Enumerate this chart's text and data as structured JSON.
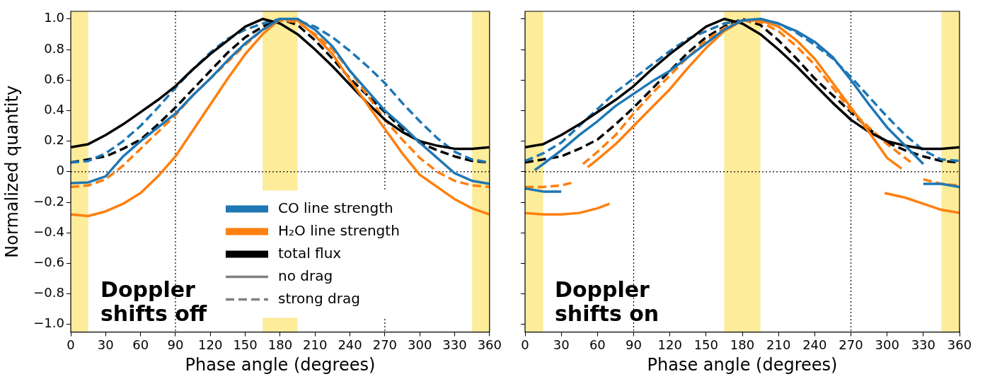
{
  "chart_data": [
    {
      "type": "line",
      "xlabel": "Phase angle (degrees)",
      "ylabel": "Normalized quantity",
      "x": [
        0,
        15,
        30,
        45,
        60,
        75,
        90,
        105,
        120,
        135,
        150,
        165,
        180,
        195,
        210,
        225,
        240,
        255,
        270,
        285,
        300,
        315,
        330,
        345,
        360
      ],
      "xlim": [
        0,
        360
      ],
      "xticks": [
        0,
        30,
        60,
        90,
        120,
        150,
        180,
        210,
        240,
        270,
        300,
        330,
        360
      ],
      "ylim": [
        -1.05,
        1.05
      ],
      "yticks": [
        {
          "value": -1,
          "label": "−1.0"
        },
        {
          "value": -0.8,
          "label": "−0.8"
        },
        {
          "value": -0.6,
          "label": "−0.6"
        },
        {
          "value": -0.4,
          "label": "−0.4"
        },
        {
          "value": -0.2,
          "label": "−0.2"
        },
        0,
        {
          "value": 0.2,
          "label": "0.2"
        },
        {
          "value": 0.4,
          "label": "0.4"
        },
        {
          "value": 0.6,
          "label": "0.6"
        },
        {
          "value": 0.8,
          "label": "0.8"
        },
        {
          "value": 1,
          "label": "1.0"
        }
      ],
      "grid": false,
      "legend": "bottom",
      "marker": "none",
      "ref_lines": [
        {
          "axis": "x",
          "value": 90,
          "color": "#000000",
          "line_style": "dotted"
        },
        {
          "axis": "x",
          "value": 270,
          "color": "#000000",
          "line_style": "dotted"
        },
        {
          "axis": "y",
          "value": 0,
          "color": "#000000",
          "line_style": "dotted"
        }
      ],
      "bands": [
        {
          "axis": "x",
          "from": 0,
          "to": 15,
          "color": "#fdec9a"
        },
        {
          "axis": "x",
          "from": 165,
          "to": 195,
          "color": "#fdec9a"
        },
        {
          "axis": "x",
          "from": 345,
          "to": 360,
          "color": "#fdec9a"
        }
      ],
      "annotations": [
        "Doppler shifts off",
        "no drag",
        "strong drag"
      ],
      "series": [
        {
          "name": "CO line strength",
          "color": "#1f77b4",
          "line_style": "solid",
          "values": [
            -0.075,
            -0.07,
            -0.03,
            0.1,
            0.2,
            0.29,
            0.38,
            0.5,
            0.61,
            0.73,
            0.84,
            0.93,
            1.0,
            1.0,
            0.93,
            0.82,
            0.66,
            0.53,
            0.4,
            0.3,
            0.19,
            0.09,
            -0.01,
            -0.06,
            -0.08
          ]
        },
        {
          "name": "H₂O line strength",
          "color": "#ff7f0e",
          "line_style": "solid",
          "values": [
            -0.28,
            -0.29,
            -0.26,
            -0.21,
            -0.14,
            -0.03,
            0.1,
            0.27,
            0.44,
            0.61,
            0.77,
            0.9,
            1.0,
            0.99,
            0.89,
            0.77,
            0.6,
            0.44,
            0.28,
            0.12,
            -0.02,
            -0.1,
            -0.18,
            -0.24,
            -0.28
          ]
        },
        {
          "name": "total flux",
          "color": "#000000",
          "line_style": "solid",
          "values": [
            0.16,
            0.18,
            0.24,
            0.31,
            0.39,
            0.47,
            0.56,
            0.67,
            0.77,
            0.86,
            0.95,
            1.0,
            0.97,
            0.9,
            0.8,
            0.69,
            0.57,
            0.45,
            0.34,
            0.26,
            0.2,
            0.17,
            0.15,
            0.15,
            0.16
          ]
        },
        {
          "color": "#1f77b4",
          "line_style": "dashed",
          "values": [
            0.06,
            0.07,
            0.12,
            0.2,
            0.3,
            0.42,
            0.55,
            0.67,
            0.78,
            0.87,
            0.93,
            0.97,
            1.0,
            0.99,
            0.95,
            0.88,
            0.79,
            0.69,
            0.58,
            0.45,
            0.33,
            0.22,
            0.13,
            0.08,
            0.06
          ]
        },
        {
          "color": "#ff7f0e",
          "line_style": "dashed",
          "values": [
            -0.1,
            -0.09,
            -0.05,
            0.04,
            0.15,
            0.26,
            0.37,
            0.5,
            0.61,
            0.72,
            0.83,
            0.93,
            0.99,
            0.98,
            0.9,
            0.8,
            0.66,
            0.5,
            0.34,
            0.21,
            0.09,
            0.0,
            -0.06,
            -0.09,
            -0.1
          ]
        },
        {
          "color": "#000000",
          "line_style": "dashed",
          "values": [
            0.06,
            0.08,
            0.1,
            0.15,
            0.21,
            0.31,
            0.42,
            0.54,
            0.66,
            0.78,
            0.88,
            0.95,
            1.0,
            0.96,
            0.86,
            0.74,
            0.61,
            0.5,
            0.39,
            0.28,
            0.19,
            0.14,
            0.1,
            0.07,
            0.06
          ]
        }
      ]
    },
    {
      "type": "line",
      "xlabel": "Phase angle (degrees)",
      "x": [
        0,
        15,
        30,
        45,
        60,
        75,
        90,
        105,
        120,
        135,
        150,
        165,
        180,
        195,
        210,
        225,
        240,
        255,
        270,
        285,
        300,
        315,
        330,
        345,
        360
      ],
      "xlim": [
        0,
        360
      ],
      "xticks": [
        0,
        30,
        60,
        90,
        120,
        150,
        180,
        210,
        240,
        270,
        300,
        330,
        360
      ],
      "ylim": [
        -1.05,
        1.05
      ],
      "yticks": [
        {
          "value": -1,
          "label": null
        },
        {
          "value": -0.8,
          "label": null
        },
        {
          "value": -0.6,
          "label": null
        },
        {
          "value": -0.4,
          "label": null
        },
        {
          "value": -0.2,
          "label": null
        },
        {
          "value": 0,
          "label": null
        },
        {
          "value": 0.2,
          "label": null
        },
        {
          "value": 0.4,
          "label": null
        },
        {
          "value": 0.6,
          "label": null
        },
        {
          "value": 0.8,
          "label": null
        },
        {
          "value": 1,
          "label": null
        }
      ],
      "tick_labels": "x",
      "grid": false,
      "marker": "none",
      "ref_lines": [
        {
          "axis": "x",
          "value": 90,
          "color": "#000000",
          "line_style": "dotted"
        },
        {
          "axis": "x",
          "value": 270,
          "color": "#000000",
          "line_style": "dotted"
        },
        {
          "axis": "y",
          "value": 0,
          "color": "#000000",
          "line_style": "dotted"
        }
      ],
      "bands": [
        {
          "axis": "x",
          "from": 0,
          "to": 15,
          "color": "#fdec9a"
        },
        {
          "axis": "x",
          "from": 165,
          "to": 195,
          "color": "#fdec9a"
        },
        {
          "axis": "x",
          "from": 345,
          "to": 360,
          "color": "#fdec9a"
        }
      ],
      "annotations": [
        "Doppler shifts on"
      ],
      "series": [
        {
          "color": "#1f77b4",
          "line_style": "solid",
          "x": [
            0,
            15,
            30
          ],
          "values": [
            -0.11,
            -0.13,
            -0.13
          ]
        },
        {
          "color": "#1f77b4",
          "line_style": "solid",
          "x": [
            8,
            15,
            30,
            45,
            60,
            75,
            90,
            105,
            120,
            135,
            150,
            165,
            180,
            195,
            210,
            225,
            240,
            255,
            270,
            285,
            300,
            315,
            330
          ],
          "values": [
            0.01,
            0.05,
            0.14,
            0.24,
            0.33,
            0.43,
            0.51,
            0.59,
            0.66,
            0.75,
            0.84,
            0.93,
            0.99,
            1.0,
            0.97,
            0.92,
            0.85,
            0.75,
            0.6,
            0.44,
            0.29,
            0.17,
            0.05
          ]
        },
        {
          "color": "#1f77b4",
          "line_style": "solid",
          "x": [
            330,
            345,
            360
          ],
          "values": [
            -0.08,
            -0.08,
            -0.1
          ]
        },
        {
          "color": "#ff7f0e",
          "line_style": "solid",
          "x": [
            0,
            15,
            30,
            45,
            60,
            70
          ],
          "values": [
            -0.27,
            -0.28,
            -0.28,
            -0.27,
            -0.24,
            -0.21
          ]
        },
        {
          "color": "#ff7f0e",
          "line_style": "solid",
          "x": [
            52,
            60,
            75,
            90,
            105,
            120,
            135,
            150,
            165,
            180,
            195,
            210,
            225,
            240,
            255,
            270,
            285,
            300,
            312
          ],
          "values": [
            0.03,
            0.08,
            0.18,
            0.3,
            0.42,
            0.54,
            0.68,
            0.81,
            0.92,
            0.99,
            0.99,
            0.95,
            0.86,
            0.74,
            0.58,
            0.42,
            0.26,
            0.09,
            0.02
          ]
        },
        {
          "color": "#ff7f0e",
          "line_style": "solid",
          "x": [
            298,
            315,
            330,
            345,
            360
          ],
          "values": [
            -0.14,
            -0.17,
            -0.21,
            -0.25,
            -0.27
          ]
        },
        {
          "color": "#000000",
          "line_style": "solid",
          "values": [
            0.16,
            0.18,
            0.24,
            0.31,
            0.39,
            0.47,
            0.56,
            0.67,
            0.77,
            0.86,
            0.95,
            1.0,
            0.97,
            0.9,
            0.8,
            0.69,
            0.57,
            0.45,
            0.34,
            0.26,
            0.2,
            0.17,
            0.15,
            0.15,
            0.16
          ]
        },
        {
          "color": "#1f77b4",
          "line_style": "dashed",
          "values": [
            0.07,
            0.12,
            0.19,
            0.3,
            0.41,
            0.52,
            0.61,
            0.7,
            0.79,
            0.87,
            0.92,
            0.97,
            0.99,
            1.0,
            0.97,
            0.91,
            0.83,
            0.74,
            0.62,
            0.49,
            0.36,
            0.24,
            0.14,
            0.08,
            0.07
          ]
        },
        {
          "color": "#ff7f0e",
          "line_style": "dashed",
          "x": [
            0,
            15,
            30,
            40
          ],
          "values": [
            -0.1,
            -0.1,
            -0.09,
            -0.07
          ]
        },
        {
          "color": "#ff7f0e",
          "line_style": "dashed",
          "x": [
            48,
            60,
            75,
            90,
            105,
            120,
            135,
            150,
            165,
            180,
            195,
            210,
            225,
            240,
            255,
            270,
            285,
            300,
            315,
            320
          ],
          "values": [
            0.05,
            0.13,
            0.24,
            0.38,
            0.51,
            0.63,
            0.75,
            0.86,
            0.94,
            0.99,
            0.98,
            0.92,
            0.82,
            0.7,
            0.55,
            0.4,
            0.29,
            0.18,
            0.09,
            0.06
          ]
        },
        {
          "color": "#ff7f0e",
          "line_style": "dashed",
          "x": [
            330,
            345,
            360
          ],
          "values": [
            -0.05,
            -0.08,
            -0.09
          ]
        },
        {
          "color": "#000000",
          "line_style": "dashed",
          "values": [
            0.06,
            0.08,
            0.1,
            0.15,
            0.21,
            0.31,
            0.42,
            0.54,
            0.66,
            0.78,
            0.88,
            0.95,
            1.0,
            0.96,
            0.86,
            0.74,
            0.61,
            0.5,
            0.39,
            0.28,
            0.19,
            0.14,
            0.1,
            0.07,
            0.06
          ]
        }
      ]
    }
  ]
}
